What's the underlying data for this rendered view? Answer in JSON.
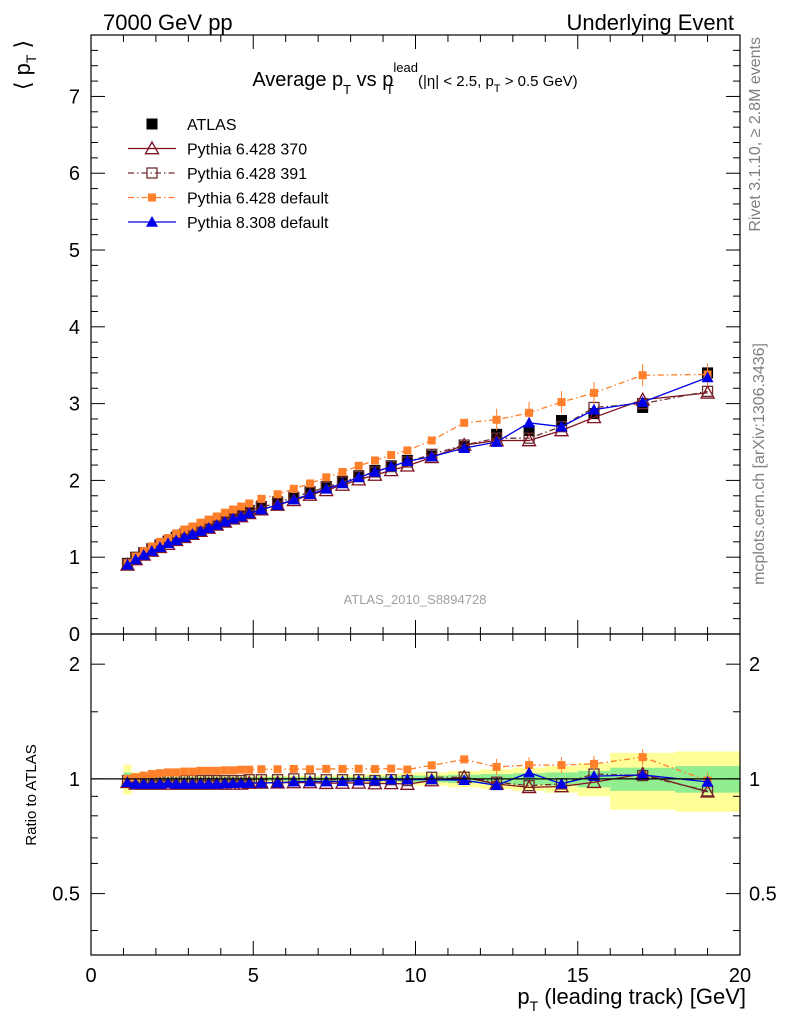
{
  "header": {
    "left": "7000 GeV pp",
    "right": "Underlying Event"
  },
  "side_labels": {
    "rivet": "Rivet 3.1.10, ≥ 2.8M events",
    "mcplots": "mcplots.cern.ch [arXiv:1306.3436]"
  },
  "watermark": "ATLAS_2010_S8894728",
  "colors": {
    "atlas": "#000000",
    "p370": "#7f1020",
    "p391": "#6b3030",
    "p6def": "#ff7f2a",
    "p8def": "#0000e6",
    "band_green": "#90ee90",
    "band_yellow": "#ffff99"
  },
  "chart_data": [
    {
      "type": "line",
      "title": "Average p_T vs p_T^lead (|η| < 2.5, p_T > 0.5 GeV)",
      "title_parts": {
        "main": "Average p",
        "sub1": "T",
        "vs": " vs p",
        "sup": "lead",
        "sub2": "T",
        "cuts1": " (|η| < 2.5, p",
        "cuts_sub": "T",
        "cuts2": " > 0.5 GeV)"
      },
      "ylabel": "⟨ p_T ⟩",
      "ylabel_parts": {
        "open": "⟨ p",
        "sub": "T",
        "close": " ⟩"
      },
      "xlim": [
        0,
        20
      ],
      "ylim": [
        0,
        7.8
      ],
      "yticks": [
        0,
        1,
        2,
        3,
        4,
        5,
        6,
        7
      ],
      "legend_position": "top-left",
      "x": [
        1.125,
        1.375,
        1.625,
        1.875,
        2.125,
        2.375,
        2.625,
        2.875,
        3.125,
        3.375,
        3.625,
        3.875,
        4.125,
        4.375,
        4.625,
        4.875,
        5.25,
        5.75,
        6.25,
        6.75,
        7.25,
        7.75,
        8.25,
        8.75,
        9.25,
        9.75,
        10.5,
        11.5,
        12.5,
        13.5,
        14.5,
        15.5,
        17.0,
        19.0
      ],
      "series": [
        {
          "name": "ATLAS",
          "key": "atlas",
          "marker": "filled-square",
          "values": [
            0.92,
            1.0,
            1.06,
            1.11,
            1.16,
            1.21,
            1.26,
            1.3,
            1.34,
            1.38,
            1.42,
            1.46,
            1.5,
            1.54,
            1.57,
            1.61,
            1.66,
            1.72,
            1.78,
            1.85,
            1.92,
            1.99,
            2.06,
            2.13,
            2.19,
            2.26,
            2.32,
            2.44,
            2.6,
            2.65,
            2.78,
            2.87,
            2.95,
            3.4
          ]
        },
        {
          "name": "Pythia 6.428 370",
          "key": "p370",
          "marker": "open-triangle",
          "values": [
            0.9,
            0.97,
            1.03,
            1.08,
            1.13,
            1.17,
            1.22,
            1.26,
            1.3,
            1.34,
            1.38,
            1.42,
            1.46,
            1.5,
            1.53,
            1.57,
            1.62,
            1.68,
            1.74,
            1.81,
            1.87,
            1.94,
            2.01,
            2.07,
            2.13,
            2.19,
            2.3,
            2.46,
            2.52,
            2.52,
            2.65,
            2.82,
            3.05,
            3.14
          ]
        },
        {
          "name": "Pythia 6.428 391",
          "key": "p391",
          "marker": "open-square",
          "values": [
            0.91,
            0.99,
            1.05,
            1.1,
            1.15,
            1.2,
            1.24,
            1.29,
            1.33,
            1.37,
            1.41,
            1.45,
            1.49,
            1.53,
            1.56,
            1.6,
            1.65,
            1.71,
            1.78,
            1.85,
            1.91,
            1.98,
            2.05,
            2.11,
            2.18,
            2.24,
            2.34,
            2.46,
            2.55,
            2.55,
            2.7,
            2.95,
            3.0,
            3.16
          ]
        },
        {
          "name": "Pythia 6.428 default",
          "key": "p6def",
          "marker": "filled-square-small",
          "values": [
            0.92,
            1.01,
            1.08,
            1.14,
            1.2,
            1.25,
            1.31,
            1.36,
            1.4,
            1.45,
            1.49,
            1.53,
            1.58,
            1.62,
            1.66,
            1.7,
            1.76,
            1.82,
            1.89,
            1.96,
            2.04,
            2.11,
            2.19,
            2.26,
            2.33,
            2.39,
            2.52,
            2.75,
            2.79,
            2.88,
            3.02,
            3.14,
            3.37,
            3.38
          ]
        },
        {
          "name": "Pythia 8.308 default",
          "key": "p8def",
          "marker": "filled-triangle",
          "values": [
            0.9,
            0.97,
            1.03,
            1.08,
            1.13,
            1.18,
            1.22,
            1.26,
            1.3,
            1.34,
            1.38,
            1.42,
            1.46,
            1.5,
            1.53,
            1.57,
            1.62,
            1.68,
            1.75,
            1.82,
            1.89,
            1.96,
            2.04,
            2.11,
            2.18,
            2.25,
            2.31,
            2.42,
            2.5,
            2.75,
            2.7,
            2.92,
            3.02,
            3.34
          ]
        }
      ]
    },
    {
      "type": "line",
      "ylabel": "Ratio to ATLAS",
      "xlabel": "p_T (leading track) [GeV]",
      "xlabel_parts": {
        "main": "p",
        "sub": "T",
        "rest": " (leading track) [GeV]"
      },
      "xlim": [
        0,
        20
      ],
      "ylim": [
        0.345,
        2.4
      ],
      "log_scale": true,
      "xticks": [
        0,
        5,
        10,
        15,
        20
      ],
      "yticks": [
        0.5,
        1,
        2
      ],
      "ytick_labels": [
        "0.5",
        "1",
        "2"
      ],
      "reference_line": 1,
      "x": [
        1.125,
        1.375,
        1.625,
        1.875,
        2.125,
        2.375,
        2.625,
        2.875,
        3.125,
        3.375,
        3.625,
        3.875,
        4.125,
        4.375,
        4.625,
        4.875,
        5.25,
        5.75,
        6.25,
        6.75,
        7.25,
        7.75,
        8.25,
        8.75,
        9.25,
        9.75,
        10.5,
        11.5,
        12.5,
        13.5,
        14.5,
        15.5,
        17.0,
        19.0
      ],
      "uncertainty_bands": {
        "edges": [
          1.0,
          1.25,
          1.5,
          1.75,
          2.0,
          2.25,
          2.5,
          2.75,
          3.0,
          3.25,
          3.5,
          3.75,
          4.0,
          4.25,
          4.5,
          4.75,
          5.0,
          5.5,
          6.0,
          6.5,
          7.0,
          7.5,
          8.0,
          8.5,
          9.0,
          9.5,
          10.0,
          11.0,
          12.0,
          13.0,
          14.0,
          15.0,
          16.0,
          18.0,
          20.0
        ],
        "inner": [
          0.04,
          0.02,
          0.015,
          0.015,
          0.012,
          0.012,
          0.012,
          0.012,
          0.012,
          0.012,
          0.012,
          0.012,
          0.012,
          0.012,
          0.012,
          0.012,
          0.012,
          0.012,
          0.012,
          0.012,
          0.012,
          0.012,
          0.012,
          0.015,
          0.015,
          0.02,
          0.02,
          0.025,
          0.03,
          0.035,
          0.04,
          0.05,
          0.07,
          0.08
        ],
        "outer": [
          0.09,
          0.04,
          0.03,
          0.025,
          0.02,
          0.02,
          0.02,
          0.02,
          0.02,
          0.02,
          0.02,
          0.02,
          0.02,
          0.02,
          0.02,
          0.02,
          0.02,
          0.02,
          0.02,
          0.02,
          0.02,
          0.025,
          0.025,
          0.03,
          0.03,
          0.035,
          0.04,
          0.05,
          0.06,
          0.07,
          0.08,
          0.1,
          0.17,
          0.18
        ]
      },
      "series": [
        {
          "name": "Pythia 6.428 370",
          "key": "p370",
          "marker": "open-triangle",
          "values": [
            0.98,
            0.97,
            0.97,
            0.97,
            0.97,
            0.97,
            0.97,
            0.97,
            0.97,
            0.97,
            0.97,
            0.97,
            0.97,
            0.97,
            0.97,
            0.975,
            0.976,
            0.977,
            0.978,
            0.978,
            0.974,
            0.975,
            0.976,
            0.972,
            0.973,
            0.969,
            0.99,
            1.01,
            0.97,
            0.95,
            0.955,
            0.98,
            1.03,
            0.925
          ]
        },
        {
          "name": "Pythia 6.428 391",
          "key": "p391",
          "marker": "open-square",
          "values": [
            0.99,
            0.99,
            0.99,
            0.99,
            0.99,
            0.99,
            0.99,
            0.99,
            0.99,
            0.99,
            0.99,
            0.99,
            0.99,
            0.99,
            0.99,
            0.995,
            0.995,
            0.995,
            1.0,
            1.0,
            0.995,
            0.995,
            0.995,
            0.99,
            0.995,
            0.99,
            1.01,
            1.01,
            0.98,
            0.96,
            0.97,
            1.03,
            1.02,
            0.93
          ]
        },
        {
          "name": "Pythia 6.428 default",
          "key": "p6def",
          "marker": "filled-square-small",
          "values": [
            1.0,
            1.01,
            1.02,
            1.03,
            1.035,
            1.04,
            1.04,
            1.045,
            1.045,
            1.05,
            1.05,
            1.05,
            1.053,
            1.053,
            1.057,
            1.057,
            1.06,
            1.06,
            1.062,
            1.06,
            1.062,
            1.062,
            1.063,
            1.061,
            1.064,
            1.058,
            1.085,
            1.125,
            1.075,
            1.087,
            1.087,
            1.095,
            1.14,
            0.99
          ]
        },
        {
          "name": "Pythia 8.308 default",
          "key": "p8def",
          "marker": "filled-triangle",
          "values": [
            0.98,
            0.97,
            0.97,
            0.97,
            0.97,
            0.975,
            0.97,
            0.97,
            0.97,
            0.97,
            0.97,
            0.97,
            0.973,
            0.974,
            0.975,
            0.975,
            0.976,
            0.977,
            0.983,
            0.984,
            0.984,
            0.985,
            0.99,
            0.99,
            0.995,
            0.996,
            0.996,
            0.992,
            0.962,
            1.038,
            0.971,
            1.017,
            1.024,
            0.982
          ]
        }
      ]
    }
  ]
}
